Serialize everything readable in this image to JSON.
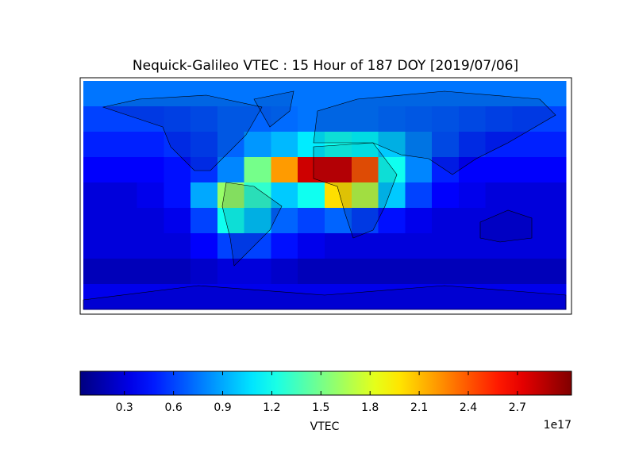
{
  "chart_data": {
    "type": "heatmap",
    "title": "Nequick-Galileo VTEC : 15 Hour of 187 DOY [2019/07/06]",
    "colormap": "jet",
    "grid": [
      [
        0.75,
        0.75,
        0.75,
        0.75,
        0.75,
        0.75,
        0.75,
        0.75,
        0.75,
        0.75,
        0.75,
        0.75,
        0.75,
        0.75,
        0.75,
        0.75,
        0.75,
        0.75
      ],
      [
        0.6,
        0.6,
        0.6,
        0.62,
        0.65,
        0.7,
        0.7,
        0.72,
        0.75,
        0.75,
        0.75,
        0.72,
        0.7,
        0.68,
        0.65,
        0.62,
        0.6,
        0.6
      ],
      [
        0.5,
        0.5,
        0.5,
        0.55,
        0.6,
        0.7,
        0.85,
        0.95,
        1.1,
        1.2,
        1.15,
        1.0,
        0.8,
        0.65,
        0.55,
        0.5,
        0.5,
        0.5
      ],
      [
        0.4,
        0.4,
        0.4,
        0.45,
        0.55,
        0.8,
        1.5,
        2.2,
        2.8,
        2.8,
        2.4,
        1.2,
        0.8,
        0.5,
        0.4,
        0.4,
        0.4,
        0.4
      ],
      [
        0.3,
        0.3,
        0.35,
        0.45,
        0.9,
        1.6,
        1.3,
        1.0,
        1.2,
        2.0,
        1.7,
        1.0,
        0.6,
        0.4,
        0.35,
        0.3,
        0.3,
        0.3
      ],
      [
        0.3,
        0.3,
        0.3,
        0.35,
        0.6,
        1.2,
        1.0,
        0.7,
        0.6,
        0.7,
        0.6,
        0.45,
        0.35,
        0.3,
        0.3,
        0.3,
        0.3,
        0.3
      ],
      [
        0.3,
        0.3,
        0.3,
        0.3,
        0.4,
        0.6,
        0.6,
        0.45,
        0.35,
        0.3,
        0.3,
        0.3,
        0.3,
        0.3,
        0.3,
        0.3,
        0.3,
        0.3
      ],
      [
        0.2,
        0.2,
        0.2,
        0.2,
        0.25,
        0.3,
        0.3,
        0.25,
        0.2,
        0.2,
        0.2,
        0.2,
        0.2,
        0.2,
        0.2,
        0.2,
        0.2,
        0.2
      ],
      [
        0.35,
        0.35,
        0.35,
        0.35,
        0.35,
        0.35,
        0.35,
        0.35,
        0.35,
        0.35,
        0.35,
        0.35,
        0.35,
        0.35,
        0.35,
        0.35,
        0.35,
        0.35
      ]
    ],
    "colorbar": {
      "label": "VTEC",
      "offset_label": "1e17",
      "lim": [
        0.03,
        3.03
      ],
      "ticks": [
        0.3,
        0.6,
        0.9,
        1.2,
        1.5,
        1.8,
        2.1,
        2.4,
        2.7
      ]
    }
  }
}
